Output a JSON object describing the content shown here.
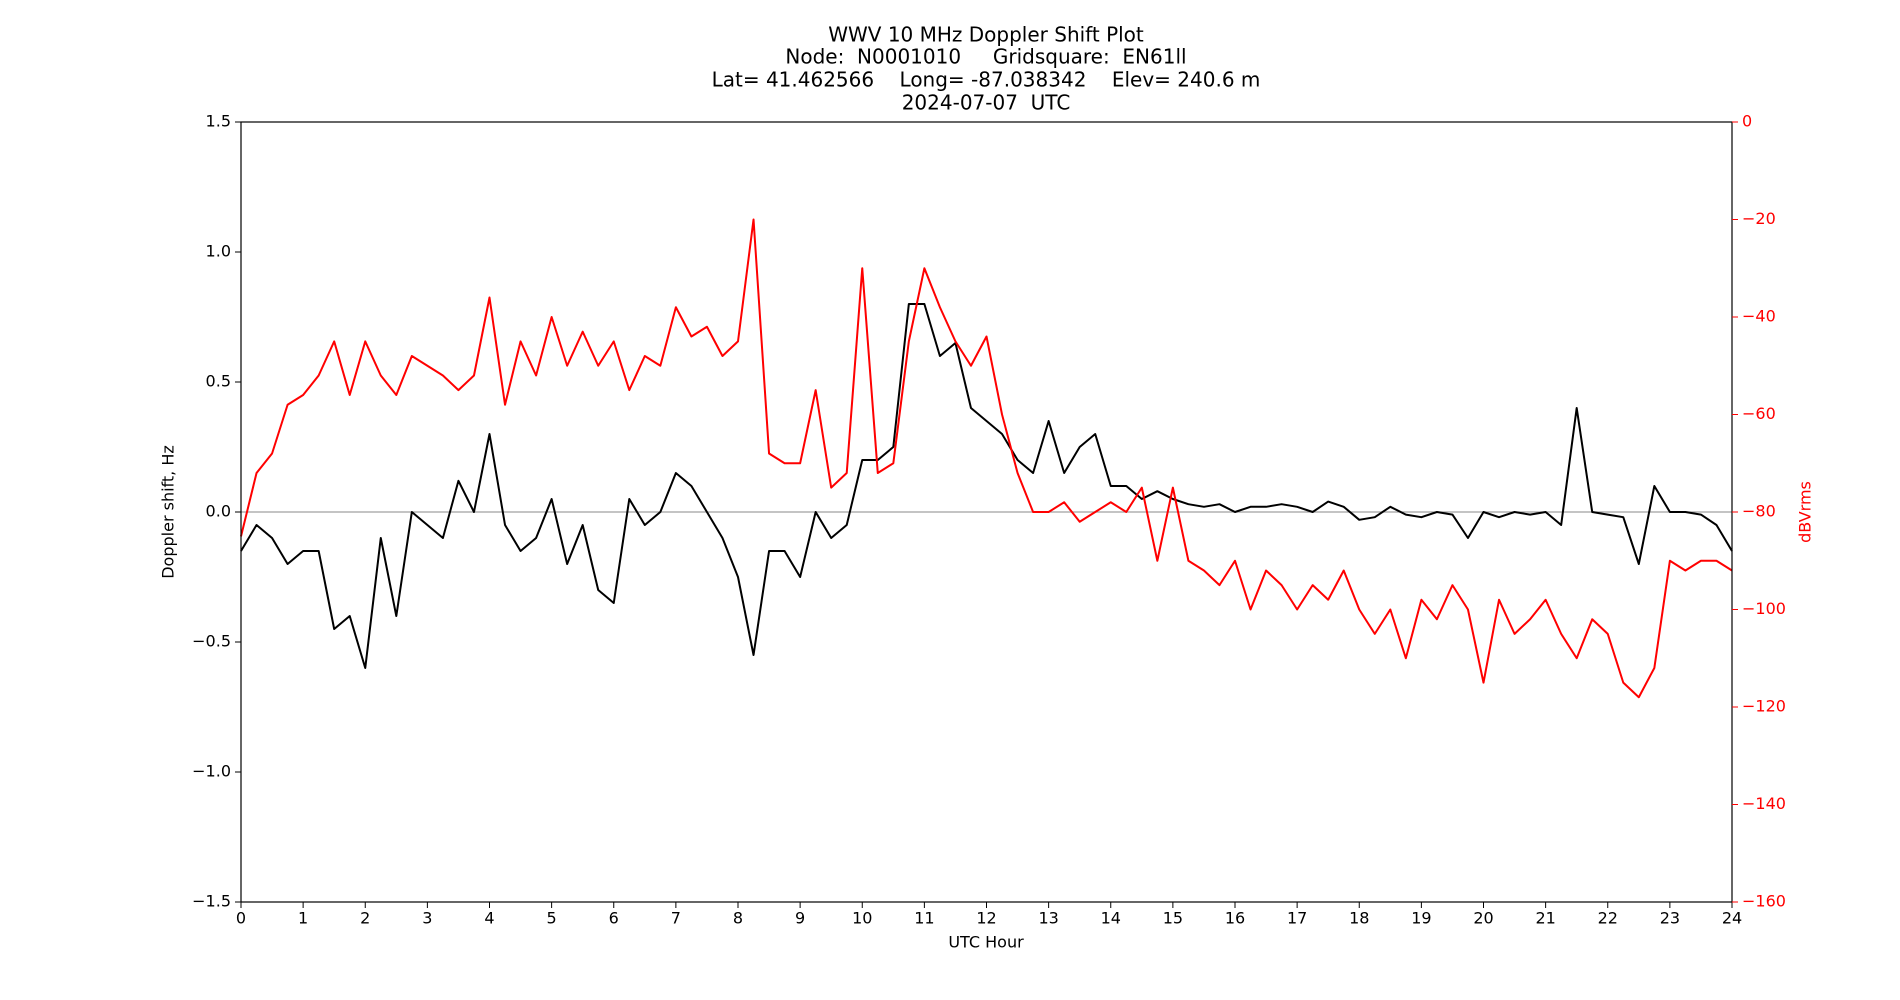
{
  "chart_data": {
    "type": "line",
    "title_lines": [
      "WWV 10 MHz Doppler Shift Plot",
      "Node:  N0001010     Gridsquare:  EN61ll",
      "Lat= 41.462566    Long= -87.038342    Elev= 240.6 m",
      "2024-07-07  UTC"
    ],
    "xlabel": "UTC Hour",
    "ylabel": "Doppler shift, Hz",
    "y2label": "dBVrms",
    "y2color": "#ff0000",
    "x": [
      0,
      0.25,
      0.5,
      0.75,
      1,
      1.25,
      1.5,
      1.75,
      2,
      2.25,
      2.5,
      2.75,
      3,
      3.25,
      3.5,
      3.75,
      4,
      4.25,
      4.5,
      4.75,
      5,
      5.25,
      5.5,
      5.75,
      6,
      6.25,
      6.5,
      6.75,
      7,
      7.25,
      7.5,
      7.75,
      8,
      8.25,
      8.5,
      8.75,
      9,
      9.25,
      9.5,
      9.75,
      10,
      10.25,
      10.5,
      10.75,
      11,
      11.25,
      11.5,
      11.75,
      12,
      12.25,
      12.5,
      12.75,
      13,
      13.25,
      13.5,
      13.75,
      14,
      14.25,
      14.5,
      14.75,
      15,
      15.25,
      15.5,
      15.75,
      16,
      16.25,
      16.5,
      16.75,
      17,
      17.25,
      17.5,
      17.75,
      18,
      18.25,
      18.5,
      18.75,
      19,
      19.25,
      19.5,
      19.75,
      20,
      20.25,
      20.5,
      20.75,
      21,
      21.25,
      21.5,
      21.75,
      22,
      22.25,
      22.5,
      22.75,
      23,
      23.25,
      23.5,
      23.75,
      24
    ],
    "series": [
      {
        "color": "#000000",
        "values": [
          -0.15,
          -0.05,
          -0.1,
          -0.2,
          -0.15,
          -0.15,
          -0.45,
          -0.4,
          -0.6,
          -0.1,
          -0.4,
          0.0,
          -0.05,
          -0.1,
          0.12,
          0.0,
          0.3,
          -0.05,
          -0.15,
          -0.1,
          0.05,
          -0.2,
          -0.05,
          -0.3,
          -0.35,
          0.05,
          -0.05,
          0.0,
          0.15,
          0.1,
          0.0,
          -0.1,
          -0.25,
          -0.55,
          -0.15,
          -0.15,
          -0.25,
          0.0,
          -0.1,
          -0.05,
          0.2,
          0.2,
          0.25,
          0.8,
          0.8,
          0.6,
          0.65,
          0.4,
          0.35,
          0.3,
          0.2,
          0.15,
          0.35,
          0.15,
          0.25,
          0.3,
          0.1,
          0.1,
          0.05,
          0.08,
          0.05,
          0.03,
          0.02,
          0.03,
          0.0,
          0.02,
          0.02,
          0.03,
          0.02,
          0.0,
          0.04,
          0.02,
          -0.03,
          -0.02,
          0.02,
          -0.01,
          -0.02,
          0.0,
          -0.01,
          -0.1,
          0.0,
          -0.02,
          0.0,
          -0.01,
          0.0,
          -0.05,
          0.4,
          0.0,
          -0.01,
          -0.02,
          -0.2,
          0.1,
          0.0,
          0.0,
          -0.01,
          -0.05,
          -0.15
        ]
      },
      {
        "color": "#ff0000",
        "axis": "y2",
        "values": [
          -85,
          -72,
          -68,
          -58,
          -56,
          -52,
          -45,
          -56,
          -45,
          -52,
          -56,
          -48,
          -50,
          -52,
          -55,
          -52,
          -36,
          -58,
          -45,
          -52,
          -40,
          -50,
          -43,
          -50,
          -45,
          -55,
          -48,
          -50,
          -38,
          -44,
          -42,
          -48,
          -45,
          -20,
          -68,
          -70,
          -70,
          -55,
          -75,
          -72,
          -30,
          -72,
          -70,
          -45,
          -30,
          -38,
          -45,
          -50,
          -44,
          -60,
          -72,
          -80,
          -80,
          -78,
          -82,
          -80,
          -78,
          -80,
          -75,
          -90,
          -75,
          -90,
          -92,
          -95,
          -90,
          -100,
          -92,
          -95,
          -100,
          -95,
          -98,
          -92,
          -100,
          -105,
          -100,
          -110,
          -98,
          -102,
          -95,
          -100,
          -115,
          -98,
          -105,
          -102,
          -98,
          -105,
          -110,
          -102,
          -105,
          -115,
          -118,
          -112,
          -90,
          -92,
          -90,
          -90,
          -92
        ]
      }
    ],
    "hline": 0,
    "hline_color": "#a0a0a0",
    "xlim": [
      0,
      24
    ],
    "xticks": [
      0,
      1,
      2,
      3,
      4,
      5,
      6,
      7,
      8,
      9,
      10,
      11,
      12,
      13,
      14,
      15,
      16,
      17,
      18,
      19,
      20,
      21,
      22,
      23,
      24
    ],
    "ylim": [
      -1.5,
      1.5
    ],
    "yticks": [
      {
        "value": -1.5,
        "label": "−1.5"
      },
      {
        "value": -1.0,
        "label": "−1.0"
      },
      {
        "value": -0.5,
        "label": "−0.5"
      },
      {
        "value": 0,
        "label": "0.0"
      },
      0.5,
      {
        "value": 1.0,
        "label": "1.0"
      },
      1.5
    ],
    "y2lim": [
      -160,
      0
    ],
    "y2ticks": [
      {
        "value": -160,
        "label": "−160"
      },
      {
        "value": -140,
        "label": "−140"
      },
      {
        "value": -120,
        "label": "−120"
      },
      {
        "value": -100,
        "label": "−100"
      },
      {
        "value": -80,
        "label": "−80"
      },
      {
        "value": -60,
        "label": "−60"
      },
      {
        "value": -40,
        "label": "−40"
      },
      {
        "value": -20,
        "label": "−20"
      },
      0
    ]
  }
}
